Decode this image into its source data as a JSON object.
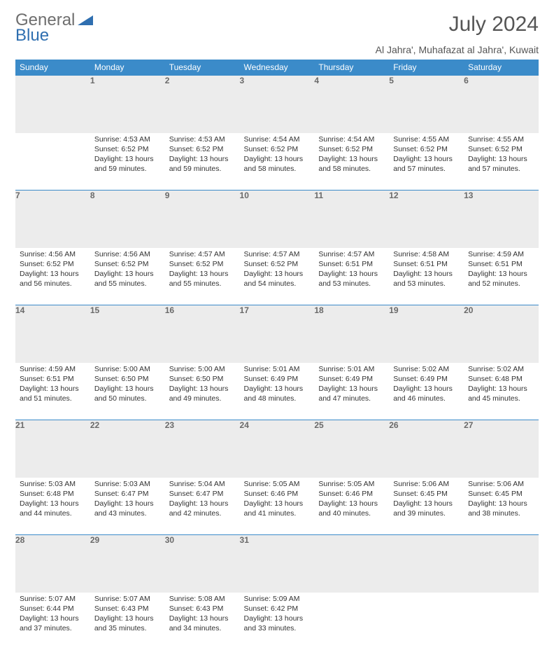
{
  "brand": {
    "word1": "General",
    "word2": "Blue",
    "gray": "#7a7a7a",
    "blue": "#2f6fb0"
  },
  "title": "July 2024",
  "location": "Al Jahra', Muhafazat al Jahra', Kuwait",
  "header_bg": "#3b8bc9",
  "day_header_bg": "#ececec",
  "weekdays": [
    "Sunday",
    "Monday",
    "Tuesday",
    "Wednesday",
    "Thursday",
    "Friday",
    "Saturday"
  ],
  "weeks": [
    [
      {
        "n": "",
        "lines": []
      },
      {
        "n": "1",
        "lines": [
          "Sunrise: 4:53 AM",
          "Sunset: 6:52 PM",
          "Daylight: 13 hours and 59 minutes."
        ]
      },
      {
        "n": "2",
        "lines": [
          "Sunrise: 4:53 AM",
          "Sunset: 6:52 PM",
          "Daylight: 13 hours and 59 minutes."
        ]
      },
      {
        "n": "3",
        "lines": [
          "Sunrise: 4:54 AM",
          "Sunset: 6:52 PM",
          "Daylight: 13 hours and 58 minutes."
        ]
      },
      {
        "n": "4",
        "lines": [
          "Sunrise: 4:54 AM",
          "Sunset: 6:52 PM",
          "Daylight: 13 hours and 58 minutes."
        ]
      },
      {
        "n": "5",
        "lines": [
          "Sunrise: 4:55 AM",
          "Sunset: 6:52 PM",
          "Daylight: 13 hours and 57 minutes."
        ]
      },
      {
        "n": "6",
        "lines": [
          "Sunrise: 4:55 AM",
          "Sunset: 6:52 PM",
          "Daylight: 13 hours and 57 minutes."
        ]
      }
    ],
    [
      {
        "n": "7",
        "lines": [
          "Sunrise: 4:56 AM",
          "Sunset: 6:52 PM",
          "Daylight: 13 hours and 56 minutes."
        ]
      },
      {
        "n": "8",
        "lines": [
          "Sunrise: 4:56 AM",
          "Sunset: 6:52 PM",
          "Daylight: 13 hours and 55 minutes."
        ]
      },
      {
        "n": "9",
        "lines": [
          "Sunrise: 4:57 AM",
          "Sunset: 6:52 PM",
          "Daylight: 13 hours and 55 minutes."
        ]
      },
      {
        "n": "10",
        "lines": [
          "Sunrise: 4:57 AM",
          "Sunset: 6:52 PM",
          "Daylight: 13 hours and 54 minutes."
        ]
      },
      {
        "n": "11",
        "lines": [
          "Sunrise: 4:57 AM",
          "Sunset: 6:51 PM",
          "Daylight: 13 hours and 53 minutes."
        ]
      },
      {
        "n": "12",
        "lines": [
          "Sunrise: 4:58 AM",
          "Sunset: 6:51 PM",
          "Daylight: 13 hours and 53 minutes."
        ]
      },
      {
        "n": "13",
        "lines": [
          "Sunrise: 4:59 AM",
          "Sunset: 6:51 PM",
          "Daylight: 13 hours and 52 minutes."
        ]
      }
    ],
    [
      {
        "n": "14",
        "lines": [
          "Sunrise: 4:59 AM",
          "Sunset: 6:51 PM",
          "Daylight: 13 hours and 51 minutes."
        ]
      },
      {
        "n": "15",
        "lines": [
          "Sunrise: 5:00 AM",
          "Sunset: 6:50 PM",
          "Daylight: 13 hours and 50 minutes."
        ]
      },
      {
        "n": "16",
        "lines": [
          "Sunrise: 5:00 AM",
          "Sunset: 6:50 PM",
          "Daylight: 13 hours and 49 minutes."
        ]
      },
      {
        "n": "17",
        "lines": [
          "Sunrise: 5:01 AM",
          "Sunset: 6:49 PM",
          "Daylight: 13 hours and 48 minutes."
        ]
      },
      {
        "n": "18",
        "lines": [
          "Sunrise: 5:01 AM",
          "Sunset: 6:49 PM",
          "Daylight: 13 hours and 47 minutes."
        ]
      },
      {
        "n": "19",
        "lines": [
          "Sunrise: 5:02 AM",
          "Sunset: 6:49 PM",
          "Daylight: 13 hours and 46 minutes."
        ]
      },
      {
        "n": "20",
        "lines": [
          "Sunrise: 5:02 AM",
          "Sunset: 6:48 PM",
          "Daylight: 13 hours and 45 minutes."
        ]
      }
    ],
    [
      {
        "n": "21",
        "lines": [
          "Sunrise: 5:03 AM",
          "Sunset: 6:48 PM",
          "Daylight: 13 hours and 44 minutes."
        ]
      },
      {
        "n": "22",
        "lines": [
          "Sunrise: 5:03 AM",
          "Sunset: 6:47 PM",
          "Daylight: 13 hours and 43 minutes."
        ]
      },
      {
        "n": "23",
        "lines": [
          "Sunrise: 5:04 AM",
          "Sunset: 6:47 PM",
          "Daylight: 13 hours and 42 minutes."
        ]
      },
      {
        "n": "24",
        "lines": [
          "Sunrise: 5:05 AM",
          "Sunset: 6:46 PM",
          "Daylight: 13 hours and 41 minutes."
        ]
      },
      {
        "n": "25",
        "lines": [
          "Sunrise: 5:05 AM",
          "Sunset: 6:46 PM",
          "Daylight: 13 hours and 40 minutes."
        ]
      },
      {
        "n": "26",
        "lines": [
          "Sunrise: 5:06 AM",
          "Sunset: 6:45 PM",
          "Daylight: 13 hours and 39 minutes."
        ]
      },
      {
        "n": "27",
        "lines": [
          "Sunrise: 5:06 AM",
          "Sunset: 6:45 PM",
          "Daylight: 13 hours and 38 minutes."
        ]
      }
    ],
    [
      {
        "n": "28",
        "lines": [
          "Sunrise: 5:07 AM",
          "Sunset: 6:44 PM",
          "Daylight: 13 hours and 37 minutes."
        ]
      },
      {
        "n": "29",
        "lines": [
          "Sunrise: 5:07 AM",
          "Sunset: 6:43 PM",
          "Daylight: 13 hours and 35 minutes."
        ]
      },
      {
        "n": "30",
        "lines": [
          "Sunrise: 5:08 AM",
          "Sunset: 6:43 PM",
          "Daylight: 13 hours and 34 minutes."
        ]
      },
      {
        "n": "31",
        "lines": [
          "Sunrise: 5:09 AM",
          "Sunset: 6:42 PM",
          "Daylight: 13 hours and 33 minutes."
        ]
      },
      {
        "n": "",
        "lines": []
      },
      {
        "n": "",
        "lines": []
      },
      {
        "n": "",
        "lines": []
      }
    ]
  ]
}
